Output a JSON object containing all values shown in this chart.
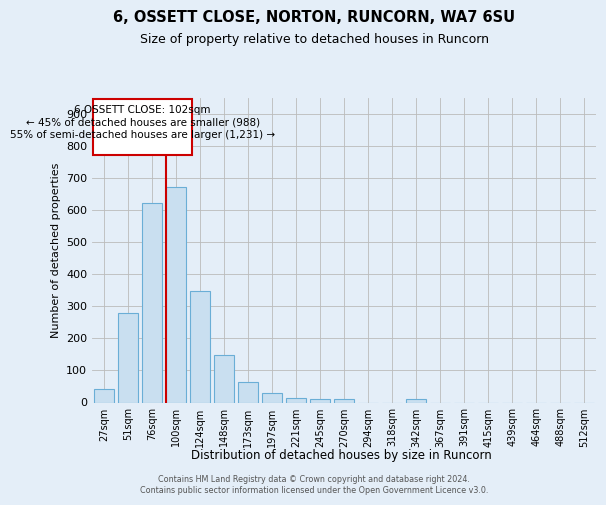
{
  "title": "6, OSSETT CLOSE, NORTON, RUNCORN, WA7 6SU",
  "subtitle": "Size of property relative to detached houses in Runcorn",
  "xlabel": "Distribution of detached houses by size in Runcorn",
  "ylabel": "Number of detached properties",
  "bar_color": "#c9dff0",
  "bar_edge_color": "#6aaed6",
  "grid_color": "#bbbbbb",
  "background_color": "#e4eef8",
  "plot_bg_color": "#e4eef8",
  "categories": [
    "27sqm",
    "51sqm",
    "76sqm",
    "100sqm",
    "124sqm",
    "148sqm",
    "173sqm",
    "197sqm",
    "221sqm",
    "245sqm",
    "270sqm",
    "294sqm",
    "318sqm",
    "342sqm",
    "367sqm",
    "391sqm",
    "415sqm",
    "439sqm",
    "464sqm",
    "488sqm",
    "512sqm"
  ],
  "values": [
    43,
    278,
    621,
    670,
    347,
    148,
    65,
    29,
    15,
    12,
    11,
    0,
    0,
    10,
    0,
    0,
    0,
    0,
    0,
    0,
    0
  ],
  "marker_bin_index": 3,
  "marker_label": "6 OSSETT CLOSE: 102sqm",
  "marker_line_color": "#cc0000",
  "annotation_line1": "← 45% of detached houses are smaller (988)",
  "annotation_line2": "55% of semi-detached houses are larger (1,231) →",
  "footer_line1": "Contains HM Land Registry data © Crown copyright and database right 2024.",
  "footer_line2": "Contains public sector information licensed under the Open Government Licence v3.0.",
  "ylim": [
    0,
    950
  ],
  "yticks": [
    0,
    100,
    200,
    300,
    400,
    500,
    600,
    700,
    800,
    900
  ]
}
